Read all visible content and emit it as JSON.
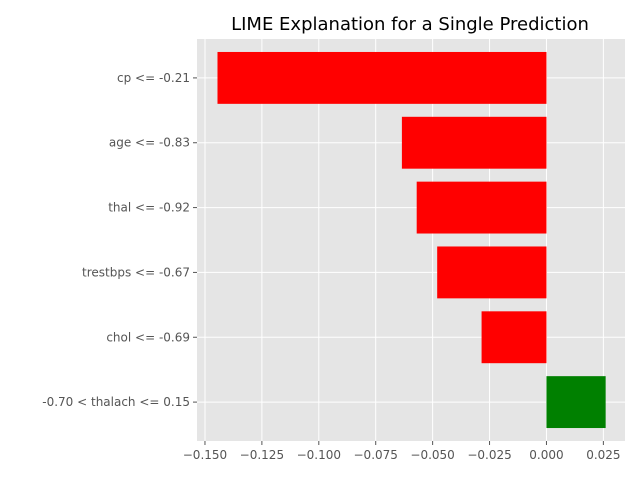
{
  "chart_data": {
    "type": "bar",
    "orientation": "horizontal",
    "title": "LIME Explanation for a Single Prediction",
    "xlabel": "",
    "ylabel": "",
    "categories": [
      "cp <= -0.21",
      "age <= -0.83",
      "thal <= -0.92",
      "trestbps <= -0.67",
      "chol <= -0.69",
      "-0.70 < thalach <= 0.15"
    ],
    "values": [
      -0.1445,
      -0.0635,
      -0.057,
      -0.048,
      -0.0285,
      0.026
    ],
    "xlim": [
      -0.1535,
      0.0345
    ],
    "x_ticks": [
      -0.15,
      -0.125,
      -0.1,
      -0.075,
      -0.05,
      -0.025,
      0.0,
      0.025
    ],
    "x_tick_labels": [
      "−0.150",
      "−0.125",
      "−0.100",
      "−0.075",
      "−0.050",
      "−0.025",
      "0.000",
      "0.025"
    ],
    "grid": true,
    "colors": {
      "negative": "#ff0000",
      "positive": "#008000",
      "background": "#e5e5e5",
      "grid": "#ffffff"
    }
  }
}
